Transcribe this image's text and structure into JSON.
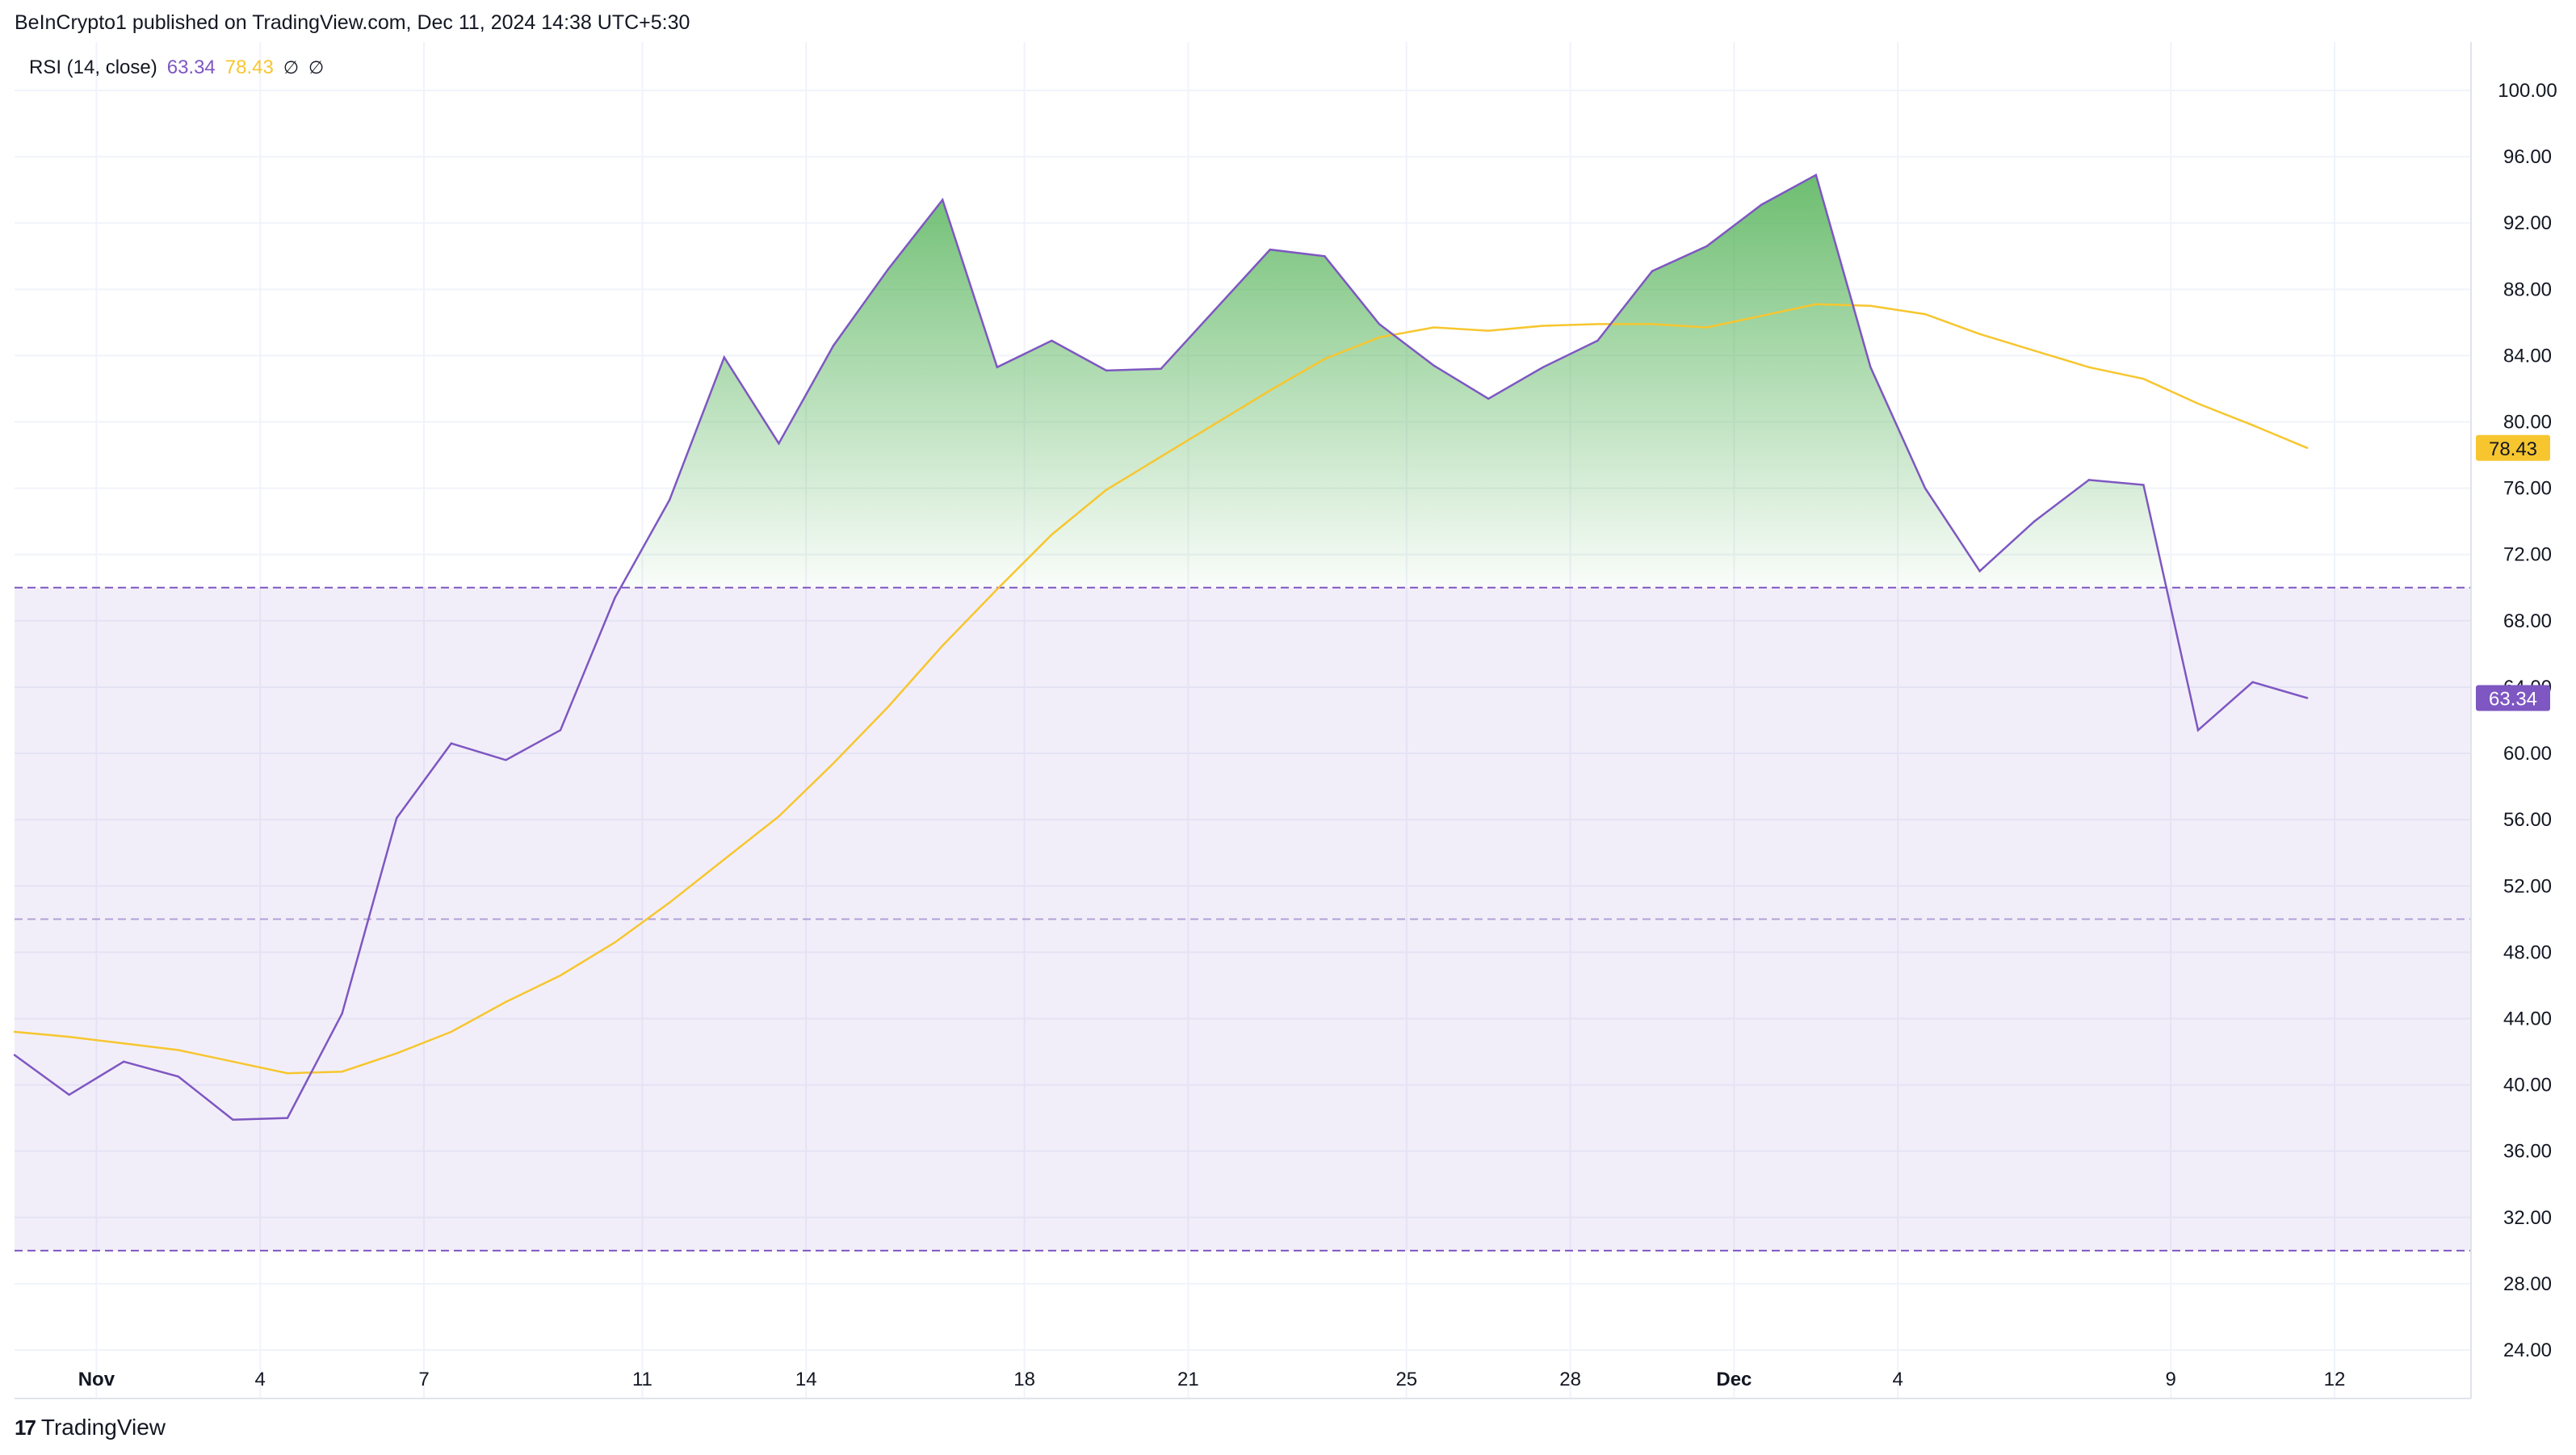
{
  "header": {
    "text": "BeInCrypto1 published on TradingView.com, Dec 11, 2024 14:38 UTC+5:30"
  },
  "legend": {
    "indicator": "RSI (14, close)",
    "rsi_value": "63.34",
    "ma_value": "78.43",
    "na1": "∅",
    "na2": "∅"
  },
  "footer": {
    "brand": "TradingView",
    "logo": "17"
  },
  "colors": {
    "rsi": "#7e57c2",
    "ma": "#f7c62f",
    "band": "#7e57c2",
    "overbought_fill": "#4caf50",
    "grid": "#f0f3fa"
  },
  "chart_data": {
    "type": "line",
    "title": "RSI (14, close)",
    "ylim": [
      22,
      102
    ],
    "y_ticks": [
      "100.00",
      "96.00",
      "92.00",
      "88.00",
      "84.00",
      "80.00",
      "76.00",
      "72.00",
      "68.00",
      "64.00",
      "60.00",
      "56.00",
      "52.00",
      "48.00",
      "44.00",
      "40.00",
      "36.00",
      "32.00",
      "28.00",
      "24.00"
    ],
    "x_ticks": [
      {
        "label": "Nov",
        "i": 1.5,
        "bold": true
      },
      {
        "label": "4",
        "i": 4.5,
        "bold": false
      },
      {
        "label": "7",
        "i": 7.5,
        "bold": false
      },
      {
        "label": "11",
        "i": 11.5,
        "bold": false
      },
      {
        "label": "14",
        "i": 14.5,
        "bold": false
      },
      {
        "label": "18",
        "i": 18.5,
        "bold": false
      },
      {
        "label": "21",
        "i": 21.5,
        "bold": false
      },
      {
        "label": "25",
        "i": 25.5,
        "bold": false
      },
      {
        "label": "28",
        "i": 28.5,
        "bold": false
      },
      {
        "label": "Dec",
        "i": 31.5,
        "bold": true
      },
      {
        "label": "4",
        "i": 34.5,
        "bold": false
      },
      {
        "label": "9",
        "i": 39.5,
        "bold": false
      },
      {
        "label": "12",
        "i": 42.5,
        "bold": false
      }
    ],
    "bands": {
      "upper": 70,
      "middle": 50,
      "lower": 30
    },
    "series": [
      {
        "name": "RSI",
        "values": [
          41.8,
          39.4,
          41.4,
          40.5,
          37.9,
          38.0,
          44.3,
          56.1,
          60.6,
          59.6,
          61.4,
          69.4,
          75.3,
          83.9,
          78.7,
          84.6,
          89.2,
          93.4,
          83.3,
          84.9,
          83.1,
          83.2,
          86.8,
          90.4,
          90.0,
          85.9,
          83.4,
          81.4,
          83.3,
          84.9,
          89.1,
          90.6,
          93.1,
          94.9,
          83.3,
          76.0,
          71.0,
          74.0,
          76.5,
          76.2,
          61.4,
          64.3,
          63.34
        ]
      },
      {
        "name": "RSI-based MA",
        "values": [
          43.2,
          42.9,
          42.5,
          42.1,
          41.4,
          40.7,
          40.8,
          41.9,
          43.2,
          45.0,
          46.6,
          48.6,
          51.0,
          53.6,
          56.2,
          59.4,
          62.8,
          66.5,
          69.9,
          73.2,
          75.9,
          77.9,
          79.9,
          81.9,
          83.8,
          85.1,
          85.7,
          85.5,
          85.8,
          85.9,
          85.9,
          85.7,
          86.4,
          87.1,
          87.0,
          86.5,
          85.3,
          84.3,
          83.3,
          82.6,
          81.1,
          79.8,
          78.43
        ]
      }
    ]
  }
}
